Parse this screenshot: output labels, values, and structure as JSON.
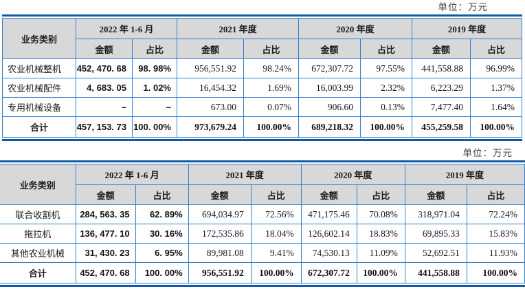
{
  "page": {
    "unit_label": "单位：万元"
  },
  "tables": [
    {
      "name": "revenue-by-business-category",
      "header": {
        "row_label": "业务类别",
        "periods": [
          "2022 年 1-6 月",
          "2021 年度",
          "2020 年度",
          "2019 年度"
        ],
        "amount_label": "金额",
        "ratio_label": "占比"
      },
      "rows": [
        {
          "label": "农业机械整机",
          "is_total": false,
          "cells": [
            "452, 470. 68",
            "98. 98%",
            "956,551.92",
            "98.24%",
            "672,307.72",
            "97.55%",
            "441,558.88",
            "96.99%"
          ]
        },
        {
          "label": "农业机械配件",
          "is_total": false,
          "cells": [
            "4, 683. 05",
            "1. 02%",
            "16,454.32",
            "1.69%",
            "16,003.99",
            "2.32%",
            "6,223.29",
            "1.37%"
          ]
        },
        {
          "label": "专用机械设备",
          "is_total": false,
          "cells": [
            "–",
            "–",
            "673.00",
            "0.07%",
            "906.60",
            "0.13%",
            "7,477.40",
            "1.64%"
          ]
        },
        {
          "label": "合计",
          "is_total": true,
          "cells": [
            "457, 153. 73",
            "100. 00%",
            "973,679.24",
            "100.00%",
            "689,218.32",
            "100.00%",
            "455,259.58",
            "100.00%"
          ]
        }
      ]
    },
    {
      "name": "revenue-by-machine-product",
      "header": {
        "row_label": "业务类别",
        "periods": [
          "2022 年 1-6 月",
          "2021 年度",
          "2020 年度",
          "2019 年度"
        ],
        "amount_label": "金额",
        "ratio_label": "占比"
      },
      "rows": [
        {
          "label": "联合收割机",
          "is_total": false,
          "cells": [
            "284, 563. 35",
            "62. 89%",
            "694,034.97",
            "72.56%",
            "471,175.46",
            "70.08%",
            "318,971.04",
            "72.24%"
          ]
        },
        {
          "label": "拖拉机",
          "is_total": false,
          "cells": [
            "136, 477. 10",
            "30. 16%",
            "172,535.86",
            "18.04%",
            "126,602.14",
            "18.83%",
            "69,895.33",
            "15.83%"
          ]
        },
        {
          "label": "其他农业机械",
          "is_total": false,
          "cells": [
            "31, 430. 23",
            "6. 95%",
            "89,981.08",
            "9.41%",
            "74,530.13",
            "11.09%",
            "52,692.51",
            "11.93%"
          ]
        },
        {
          "label": "合计",
          "is_total": true,
          "cells": [
            "452, 470. 68",
            "100. 00%",
            "956,551.92",
            "100.00%",
            "672,307.72",
            "100.00%",
            "441,558.88",
            "100.00%"
          ]
        }
      ]
    }
  ]
}
